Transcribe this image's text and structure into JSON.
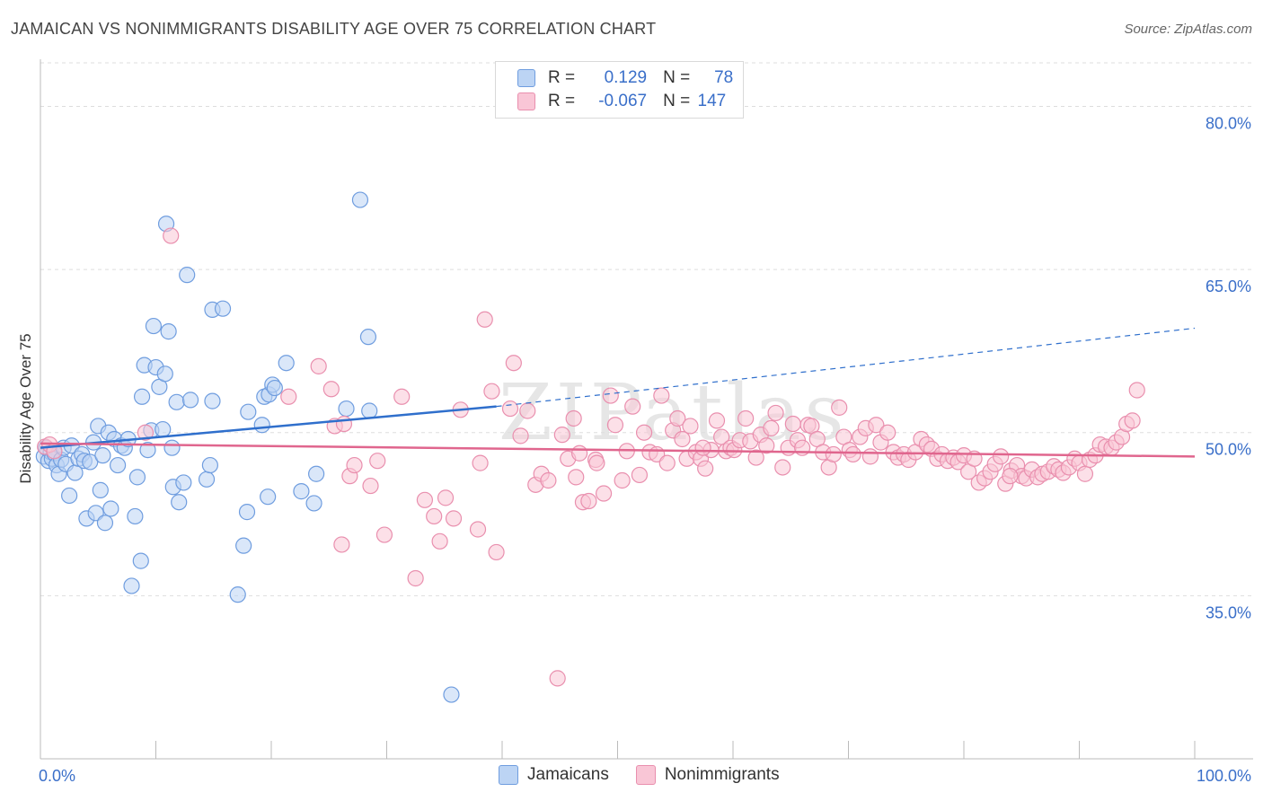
{
  "header": {
    "title": "JAMAICAN VS NONIMMIGRANTS DISABILITY AGE OVER 75 CORRELATION CHART",
    "source": "Source: ZipAtlas.com"
  },
  "watermark": "ZIPatlas",
  "legend_top": {
    "rows": [
      {
        "r_label": "R =",
        "r_value": "0.129",
        "n_label": "N =",
        "n_value": "78"
      },
      {
        "r_label": "R =",
        "r_value": "-0.067",
        "n_label": "N =",
        "n_value": "147"
      }
    ]
  },
  "colors": {
    "jamaicans_fill": "#bcd4f4",
    "jamaicans_stroke": "#6f9ddf",
    "jamaicans_line": "#2f6fcc",
    "nonimmigrants_fill": "#f9c6d6",
    "nonimmigrants_stroke": "#e98fae",
    "nonimmigrants_line": "#e0668e",
    "tick_label": "#3a6fc9",
    "grid": "#dddddd"
  },
  "chart_data": {
    "type": "scatter",
    "title": "JAMAICAN VS NONIMMIGRANTS DISABILITY AGE OVER 75 CORRELATION CHART",
    "xlabel": "",
    "ylabel": "Disability Age Over 75",
    "xlim": [
      0,
      100
    ],
    "ylim": [
      20,
      84
    ],
    "x_tick_labels": [
      "0.0%",
      "100.0%"
    ],
    "y_ticks": [
      35,
      50,
      65,
      80
    ],
    "y_tick_labels": [
      "35.0%",
      "50.0%",
      "65.0%",
      "80.0%"
    ],
    "grid": true,
    "legend_placement": "bottom-center",
    "series": [
      {
        "name": "Jamaicans",
        "r": 0.129,
        "n": 78,
        "trend": {
          "x0": 0,
          "y0": 48.6,
          "x1": 39.5,
          "y1": 52.4,
          "dashed_to_x": 100,
          "dashed_to_y": 59.6
        },
        "points": [
          [
            0.3,
            47.8
          ],
          [
            0.5,
            48.6
          ],
          [
            0.7,
            47.4
          ],
          [
            0.9,
            48.2
          ],
          [
            1.0,
            47.6
          ],
          [
            1.2,
            48.1
          ],
          [
            1.4,
            47.0
          ],
          [
            1.6,
            46.2
          ],
          [
            1.8,
            47.5
          ],
          [
            2.0,
            48.6
          ],
          [
            2.2,
            47.1
          ],
          [
            2.5,
            44.2
          ],
          [
            2.7,
            48.8
          ],
          [
            3.0,
            46.3
          ],
          [
            3.3,
            47.6
          ],
          [
            3.6,
            48.0
          ],
          [
            3.8,
            47.4
          ],
          [
            4.0,
            42.1
          ],
          [
            4.3,
            47.3
          ],
          [
            4.6,
            49.1
          ],
          [
            4.8,
            42.6
          ],
          [
            5.0,
            50.6
          ],
          [
            5.2,
            44.7
          ],
          [
            5.4,
            47.9
          ],
          [
            5.6,
            41.7
          ],
          [
            5.9,
            50.0
          ],
          [
            6.1,
            43.0
          ],
          [
            6.4,
            49.4
          ],
          [
            6.7,
            47.0
          ],
          [
            7.0,
            48.8
          ],
          [
            7.3,
            48.6
          ],
          [
            7.6,
            49.4
          ],
          [
            7.9,
            35.9
          ],
          [
            8.2,
            42.3
          ],
          [
            8.4,
            45.9
          ],
          [
            8.7,
            38.2
          ],
          [
            8.8,
            53.3
          ],
          [
            9.0,
            56.2
          ],
          [
            9.3,
            48.4
          ],
          [
            9.6,
            50.2
          ],
          [
            9.8,
            59.8
          ],
          [
            10.0,
            56.0
          ],
          [
            10.3,
            54.2
          ],
          [
            10.6,
            50.3
          ],
          [
            10.8,
            55.4
          ],
          [
            10.9,
            69.2
          ],
          [
            11.1,
            59.3
          ],
          [
            11.4,
            48.6
          ],
          [
            11.5,
            45.0
          ],
          [
            11.8,
            52.8
          ],
          [
            12.0,
            43.6
          ],
          [
            12.4,
            45.4
          ],
          [
            12.7,
            64.5
          ],
          [
            13.0,
            53.0
          ],
          [
            14.4,
            45.7
          ],
          [
            14.7,
            47.0
          ],
          [
            14.9,
            52.9
          ],
          [
            14.9,
            61.3
          ],
          [
            15.8,
            61.4
          ],
          [
            17.1,
            35.1
          ],
          [
            17.6,
            39.6
          ],
          [
            17.9,
            42.7
          ],
          [
            18.0,
            51.9
          ],
          [
            19.2,
            50.7
          ],
          [
            19.4,
            53.3
          ],
          [
            19.7,
            44.1
          ],
          [
            19.8,
            53.5
          ],
          [
            20.1,
            54.4
          ],
          [
            20.3,
            54.1
          ],
          [
            21.3,
            56.4
          ],
          [
            22.6,
            44.6
          ],
          [
            23.7,
            43.5
          ],
          [
            23.9,
            46.2
          ],
          [
            26.5,
            52.2
          ],
          [
            27.7,
            71.4
          ],
          [
            28.4,
            58.8
          ],
          [
            35.6,
            25.9
          ],
          [
            28.5,
            52.0
          ]
        ]
      },
      {
        "name": "Nonimmigrants",
        "r": -0.067,
        "n": 147,
        "trend": {
          "x0": 0,
          "y0": 49.0,
          "x1": 100,
          "y1": 47.8
        },
        "points": [
          [
            0.4,
            48.7
          ],
          [
            0.8,
            48.9
          ],
          [
            1.2,
            48.3
          ],
          [
            9.1,
            50.0
          ],
          [
            11.3,
            68.1
          ],
          [
            21.5,
            53.3
          ],
          [
            24.1,
            56.1
          ],
          [
            25.2,
            54.0
          ],
          [
            25.5,
            50.6
          ],
          [
            26.3,
            50.8
          ],
          [
            26.1,
            39.7
          ],
          [
            26.8,
            46.0
          ],
          [
            27.2,
            47.0
          ],
          [
            28.6,
            45.1
          ],
          [
            29.2,
            47.4
          ],
          [
            29.8,
            40.6
          ],
          [
            31.3,
            53.3
          ],
          [
            32.5,
            36.6
          ],
          [
            33.3,
            43.8
          ],
          [
            34.1,
            42.3
          ],
          [
            34.6,
            40.0
          ],
          [
            35.1,
            44.0
          ],
          [
            35.8,
            42.1
          ],
          [
            36.4,
            52.1
          ],
          [
            37.9,
            41.1
          ],
          [
            38.1,
            47.2
          ],
          [
            38.5,
            60.4
          ],
          [
            39.1,
            53.8
          ],
          [
            39.5,
            39.0
          ],
          [
            40.7,
            52.2
          ],
          [
            41.0,
            56.4
          ],
          [
            41.6,
            49.7
          ],
          [
            42.2,
            52.0
          ],
          [
            42.9,
            45.2
          ],
          [
            43.4,
            46.2
          ],
          [
            44.0,
            45.6
          ],
          [
            44.8,
            27.4
          ],
          [
            45.2,
            49.8
          ],
          [
            45.7,
            47.6
          ],
          [
            46.2,
            51.3
          ],
          [
            46.7,
            48.1
          ],
          [
            47.0,
            43.6
          ],
          [
            47.5,
            43.7
          ],
          [
            48.1,
            47.5
          ],
          [
            48.2,
            47.2
          ],
          [
            48.8,
            44.4
          ],
          [
            49.4,
            53.4
          ],
          [
            49.8,
            50.7
          ],
          [
            50.4,
            45.6
          ],
          [
            50.8,
            48.3
          ],
          [
            51.3,
            52.4
          ],
          [
            51.9,
            46.1
          ],
          [
            52.3,
            50.0
          ],
          [
            52.8,
            48.2
          ],
          [
            53.4,
            48.0
          ],
          [
            53.8,
            53.4
          ],
          [
            54.3,
            47.2
          ],
          [
            54.8,
            50.2
          ],
          [
            55.2,
            51.3
          ],
          [
            55.6,
            49.4
          ],
          [
            56.0,
            47.6
          ],
          [
            56.3,
            50.6
          ],
          [
            56.8,
            48.2
          ],
          [
            57.2,
            47.6
          ],
          [
            57.6,
            46.7
          ],
          [
            58.1,
            48.4
          ],
          [
            58.6,
            51.1
          ],
          [
            59.0,
            49.6
          ],
          [
            59.4,
            48.3
          ],
          [
            59.8,
            48.6
          ],
          [
            60.1,
            48.4
          ],
          [
            60.6,
            49.3
          ],
          [
            61.1,
            51.3
          ],
          [
            61.5,
            49.2
          ],
          [
            62.0,
            47.7
          ],
          [
            62.4,
            49.8
          ],
          [
            62.9,
            48.8
          ],
          [
            63.3,
            50.4
          ],
          [
            63.7,
            51.8
          ],
          [
            64.3,
            46.8
          ],
          [
            64.8,
            48.6
          ],
          [
            65.2,
            50.8
          ],
          [
            65.6,
            49.3
          ],
          [
            66.0,
            48.6
          ],
          [
            66.5,
            50.7
          ],
          [
            66.8,
            50.6
          ],
          [
            67.3,
            49.4
          ],
          [
            67.8,
            48.2
          ],
          [
            68.3,
            46.8
          ],
          [
            68.7,
            48.0
          ],
          [
            69.2,
            52.3
          ],
          [
            69.6,
            49.6
          ],
          [
            70.1,
            48.4
          ],
          [
            70.4,
            48.0
          ],
          [
            71.0,
            49.6
          ],
          [
            71.5,
            50.4
          ],
          [
            71.9,
            47.8
          ],
          [
            72.4,
            50.7
          ],
          [
            72.8,
            49.1
          ],
          [
            73.4,
            50.0
          ],
          [
            73.9,
            48.2
          ],
          [
            74.3,
            47.7
          ],
          [
            74.8,
            48.0
          ],
          [
            75.2,
            47.5
          ],
          [
            75.8,
            48.2
          ],
          [
            76.3,
            49.4
          ],
          [
            76.8,
            48.9
          ],
          [
            77.2,
            48.5
          ],
          [
            77.7,
            47.6
          ],
          [
            78.1,
            48.0
          ],
          [
            78.6,
            47.4
          ],
          [
            79.1,
            47.7
          ],
          [
            79.5,
            47.3
          ],
          [
            80.0,
            47.9
          ],
          [
            80.4,
            46.4
          ],
          [
            80.9,
            47.6
          ],
          [
            81.3,
            45.4
          ],
          [
            81.8,
            45.8
          ],
          [
            82.3,
            46.4
          ],
          [
            82.7,
            47.1
          ],
          [
            83.2,
            47.8
          ],
          [
            83.6,
            45.3
          ],
          [
            84.1,
            46.5
          ],
          [
            84.6,
            47.0
          ],
          [
            85.0,
            46.0
          ],
          [
            85.4,
            45.8
          ],
          [
            85.9,
            46.6
          ],
          [
            86.4,
            45.9
          ],
          [
            86.8,
            46.2
          ],
          [
            87.3,
            46.4
          ],
          [
            87.8,
            46.9
          ],
          [
            88.2,
            46.6
          ],
          [
            88.6,
            46.3
          ],
          [
            89.1,
            46.8
          ],
          [
            89.6,
            47.6
          ],
          [
            90.0,
            47.2
          ],
          [
            90.5,
            46.2
          ],
          [
            90.9,
            47.5
          ],
          [
            91.4,
            47.9
          ],
          [
            91.8,
            48.9
          ],
          [
            92.3,
            48.7
          ],
          [
            92.8,
            48.6
          ],
          [
            93.2,
            49.1
          ],
          [
            93.7,
            49.6
          ],
          [
            94.1,
            50.8
          ],
          [
            94.6,
            51.1
          ],
          [
            95.0,
            53.9
          ],
          [
            46.4,
            45.9
          ],
          [
            57.4,
            48.6
          ],
          [
            84.0,
            46.0
          ]
        ]
      }
    ]
  }
}
